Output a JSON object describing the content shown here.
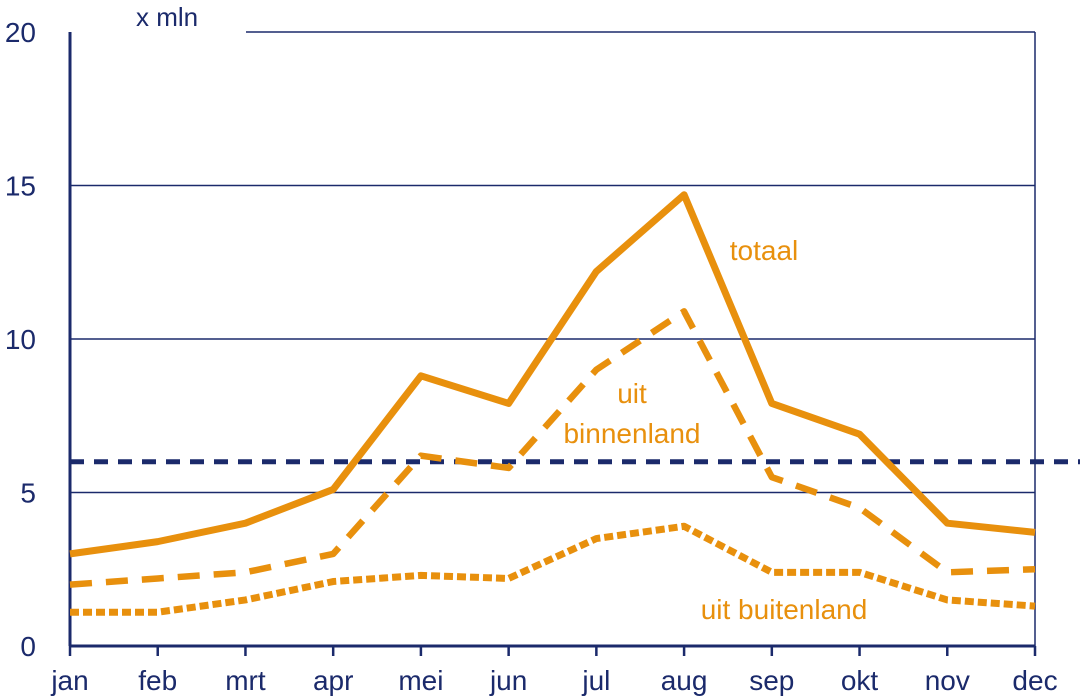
{
  "chart_data": {
    "type": "line",
    "unit_label": "x mln",
    "categories": [
      "jan",
      "feb",
      "mrt",
      "apr",
      "mei",
      "jun",
      "jul",
      "aug",
      "sep",
      "okt",
      "nov",
      "dec"
    ],
    "ylim": [
      0,
      20
    ],
    "yticks": [
      0,
      5,
      10,
      15,
      20
    ],
    "grid": true,
    "series": [
      {
        "name": "totaal",
        "style": "solid",
        "color": "#e8900d",
        "values": [
          3.0,
          3.4,
          4.0,
          5.1,
          8.8,
          7.9,
          12.2,
          14.7,
          7.9,
          6.9,
          4.0,
          3.7
        ]
      },
      {
        "name": "uit binnenland",
        "style": "dashed",
        "color": "#e8900d",
        "values": [
          2.0,
          2.2,
          2.4,
          3.0,
          6.2,
          5.8,
          9.0,
          10.9,
          5.5,
          4.5,
          2.4,
          2.5
        ]
      },
      {
        "name": "uit buitenland",
        "style": "dotted",
        "color": "#e8900d",
        "values": [
          1.1,
          1.1,
          1.5,
          2.1,
          2.3,
          2.2,
          3.5,
          3.9,
          2.4,
          2.4,
          1.5,
          1.3
        ]
      }
    ],
    "series_label_lines": {
      "totaal": [
        "totaal"
      ],
      "uit binnenland": [
        "uit",
        "binnenland"
      ],
      "uit buitenland": [
        "uit buitenland"
      ]
    },
    "reference_line": {
      "value": 6.0,
      "style": "dashed",
      "color": "#1b2a6b"
    },
    "colors": {
      "axis": "#1b2a6b",
      "grid": "#1b2a6b",
      "series": "#e8900d",
      "text_dark": "#1b2a6b"
    }
  }
}
